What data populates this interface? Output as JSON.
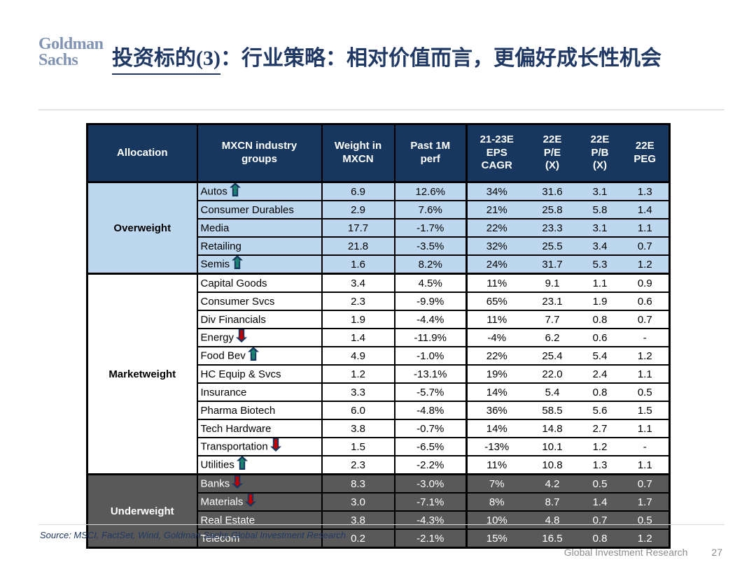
{
  "logo": {
    "line1": "Goldman",
    "line2": "Sachs"
  },
  "title": {
    "underlined": "投资标的(3)",
    "rest": "：行业策略：相对价值而言，更偏好成长性机会"
  },
  "table": {
    "headers": [
      "Allocation",
      "MXCN industry\ngroups",
      "Weight in\nMXCN",
      "Past 1M\nperf",
      "21-23E\nEPS\nCAGR",
      "22E\nP/E\n(X)",
      "22E\nP/B\n(X)",
      "22E\nPEG"
    ],
    "groups": [
      {
        "allocation": "Overweight",
        "class": "ow",
        "rows": [
          {
            "name": "Autos",
            "arrow": "up",
            "weight": "6.9",
            "perf": "12.6%",
            "eps_cagr": "34%",
            "pe": "31.6",
            "pb": "3.1",
            "peg": "1.3"
          },
          {
            "name": "Consumer Durables",
            "arrow": null,
            "weight": "2.9",
            "perf": "7.6%",
            "eps_cagr": "21%",
            "pe": "25.8",
            "pb": "5.8",
            "peg": "1.4"
          },
          {
            "name": "Media",
            "arrow": null,
            "weight": "17.7",
            "perf": "-1.7%",
            "eps_cagr": "22%",
            "pe": "23.3",
            "pb": "3.1",
            "peg": "1.1"
          },
          {
            "name": "Retailing",
            "arrow": null,
            "weight": "21.8",
            "perf": "-3.5%",
            "eps_cagr": "32%",
            "pe": "25.5",
            "pb": "3.4",
            "peg": "0.7"
          },
          {
            "name": "Semis",
            "arrow": "up",
            "weight": "1.6",
            "perf": "8.2%",
            "eps_cagr": "24%",
            "pe": "31.7",
            "pb": "5.3",
            "peg": "1.2"
          }
        ]
      },
      {
        "allocation": "Marketweight",
        "class": "mw",
        "rows": [
          {
            "name": "Capital Goods",
            "arrow": null,
            "weight": "3.4",
            "perf": "4.5%",
            "eps_cagr": "11%",
            "pe": "9.1",
            "pb": "1.1",
            "peg": "0.9"
          },
          {
            "name": "Consumer Svcs",
            "arrow": null,
            "weight": "2.3",
            "perf": "-9.9%",
            "eps_cagr": "65%",
            "pe": "23.1",
            "pb": "1.9",
            "peg": "0.6"
          },
          {
            "name": "Div Financials",
            "arrow": null,
            "weight": "1.9",
            "perf": "-4.4%",
            "eps_cagr": "11%",
            "pe": "7.7",
            "pb": "0.8",
            "peg": "0.7"
          },
          {
            "name": "Energy",
            "arrow": "down",
            "weight": "1.4",
            "perf": "-11.9%",
            "eps_cagr": "-4%",
            "pe": "6.2",
            "pb": "0.6",
            "peg": "-"
          },
          {
            "name": "Food Bev",
            "arrow": "up",
            "weight": "4.9",
            "perf": "-1.0%",
            "eps_cagr": "22%",
            "pe": "25.4",
            "pb": "5.4",
            "peg": "1.2"
          },
          {
            "name": "HC Equip & Svcs",
            "arrow": null,
            "weight": "1.2",
            "perf": "-13.1%",
            "eps_cagr": "19%",
            "pe": "22.0",
            "pb": "2.4",
            "peg": "1.1"
          },
          {
            "name": "Insurance",
            "arrow": null,
            "weight": "3.3",
            "perf": "-5.7%",
            "eps_cagr": "14%",
            "pe": "5.4",
            "pb": "0.8",
            "peg": "0.5"
          },
          {
            "name": "Pharma Biotech",
            "arrow": null,
            "weight": "6.0",
            "perf": "-4.8%",
            "eps_cagr": "36%",
            "pe": "58.5",
            "pb": "5.6",
            "peg": "1.5"
          },
          {
            "name": "Tech Hardware",
            "arrow": null,
            "weight": "3.8",
            "perf": "-0.7%",
            "eps_cagr": "14%",
            "pe": "14.8",
            "pb": "2.7",
            "peg": "1.1"
          },
          {
            "name": "Transportation",
            "arrow": "down",
            "weight": "1.5",
            "perf": "-6.5%",
            "eps_cagr": "-13%",
            "pe": "10.1",
            "pb": "1.2",
            "peg": "-"
          },
          {
            "name": "Utilities",
            "arrow": "up",
            "weight": "2.3",
            "perf": "-2.2%",
            "eps_cagr": "11%",
            "pe": "10.8",
            "pb": "1.3",
            "peg": "1.1"
          }
        ]
      },
      {
        "allocation": "Underweight",
        "class": "uw",
        "rows": [
          {
            "name": "Banks",
            "arrow": "down",
            "weight": "8.3",
            "perf": "-3.0%",
            "eps_cagr": "7%",
            "pe": "4.2",
            "pb": "0.5",
            "peg": "0.7"
          },
          {
            "name": "Materials",
            "arrow": "down",
            "weight": "3.0",
            "perf": "-7.1%",
            "eps_cagr": "8%",
            "pe": "8.7",
            "pb": "1.4",
            "peg": "1.7"
          },
          {
            "name": "Real Estate",
            "arrow": null,
            "weight": "3.8",
            "perf": "-4.3%",
            "eps_cagr": "10%",
            "pe": "4.8",
            "pb": "0.7",
            "peg": "0.5"
          },
          {
            "name": "Telecom",
            "arrow": null,
            "weight": "0.2",
            "perf": "-2.1%",
            "eps_cagr": "15%",
            "pe": "16.5",
            "pb": "0.8",
            "peg": "1.2"
          }
        ]
      }
    ]
  },
  "source": "Source: MSCI, FactSet, Wind, Goldman Sachs Global Investment Research",
  "footer": {
    "label": "Global Investment Research",
    "page_number": "27"
  },
  "colors": {
    "header_navy": "#17375E",
    "overweight_blue": "#BDD7EE",
    "underweight_gray": "#595959",
    "title_navy": "#1F3864",
    "logo_blue": "#8193B3",
    "arrow_up": "#1B8272",
    "arrow_down": "#C00000",
    "arrow_outline": "#17375E"
  }
}
